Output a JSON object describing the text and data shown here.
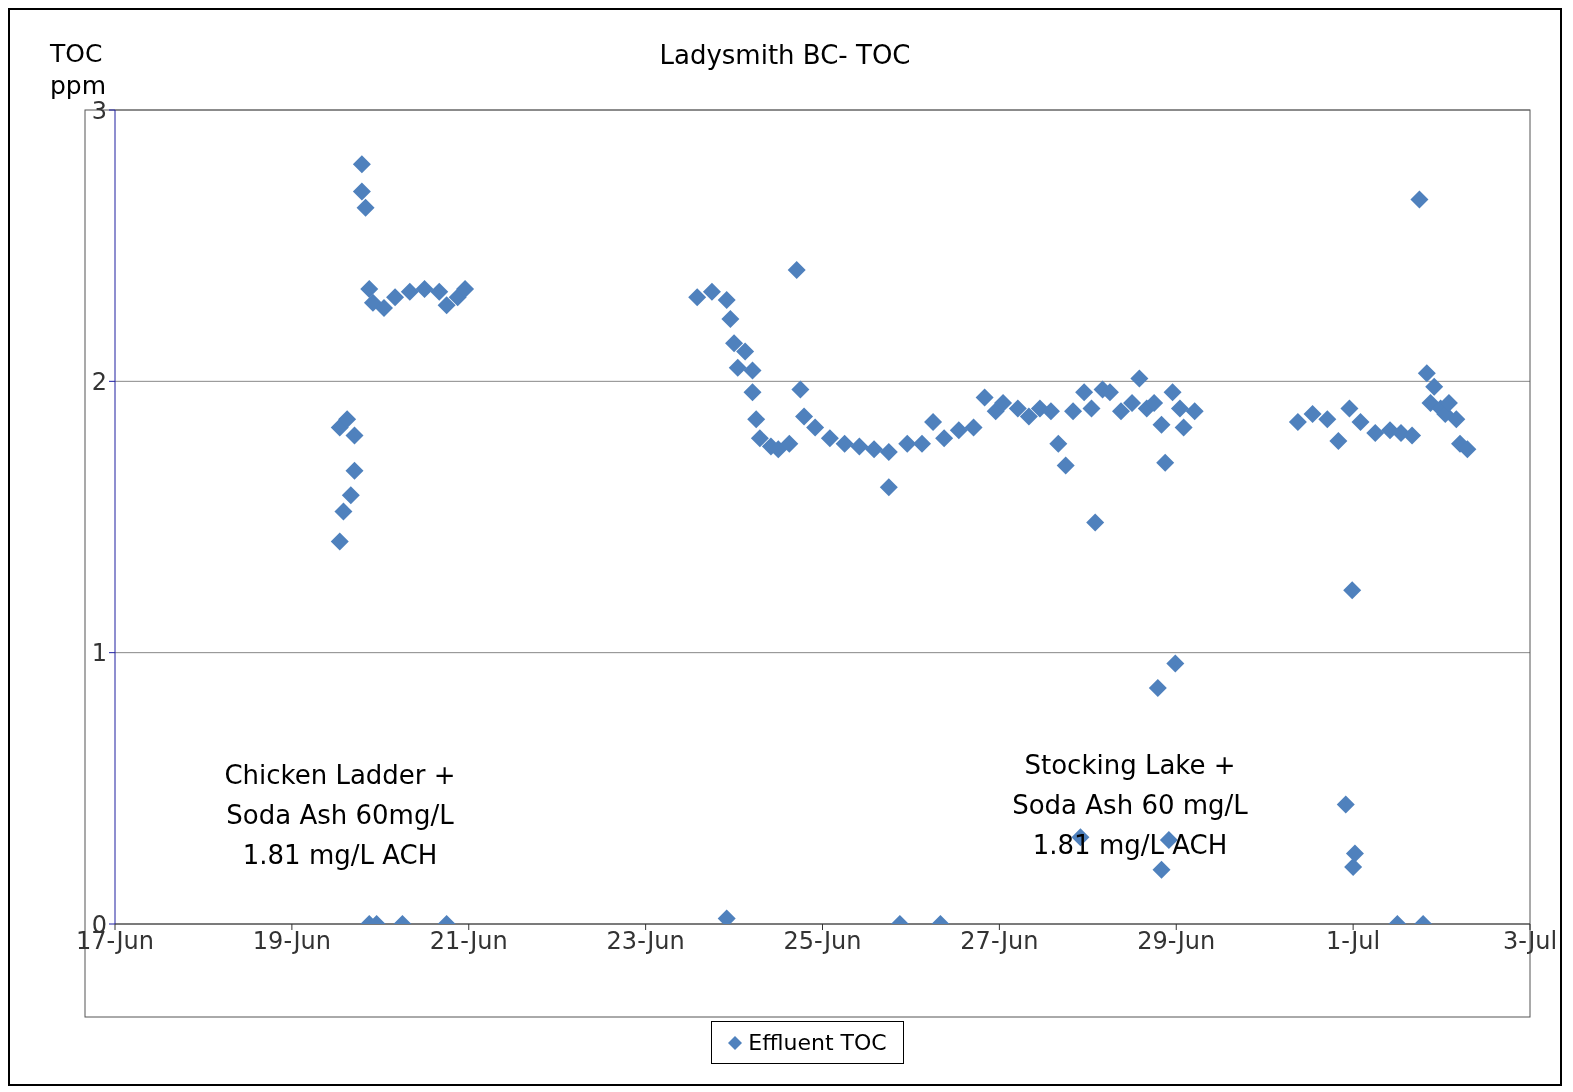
{
  "chart_data": {
    "type": "scatter",
    "title": "Ladysmith BC- TOC",
    "ylabel": "TOC ppm",
    "annotations": [
      "Chicken Ladder +\nSoda Ash 60mg/L\n1.81 mg/L ACH",
      "Stocking Lake +\nSoda Ash 60 mg/L\n1.81 mg/L ACH"
    ],
    "xlim": [
      "--06-17",
      "--07-03"
    ],
    "xticks": [
      {
        "value": "--06-17",
        "label": "17-Jun"
      },
      {
        "value": "--06-19",
        "label": "19-Jun"
      },
      {
        "value": "--06-21",
        "label": "21-Jun"
      },
      {
        "value": "--06-23",
        "label": "23-Jun"
      },
      {
        "value": "--06-25",
        "label": "25-Jun"
      },
      {
        "value": "--06-27",
        "label": "27-Jun"
      },
      {
        "value": "--06-29",
        "label": "29-Jun"
      },
      {
        "value": "--07-01",
        "label": "1-Jul"
      },
      {
        "value": "--07-03",
        "label": "3-Jul"
      }
    ],
    "ylim": [
      0,
      3
    ],
    "yticks": [
      0,
      1,
      2,
      3
    ],
    "grid": "y",
    "legend": "bottom",
    "marker": "diamond",
    "series": [
      {
        "name": "Effluent TOC",
        "color": "#4f81bd",
        "x": [
          "--06-19T13:00",
          "--06-19T14:00",
          "--06-19T16:00",
          "--06-19T17:00",
          "--06-19T13:00",
          "--06-19T15:00",
          "--06-19T17:00",
          "--06-19T19:00",
          "--06-19T19:00",
          "--06-19T20:00",
          "--06-19T21:00",
          "--06-19T22:00",
          "--06-20T01:00",
          "--06-20T04:00",
          "--06-20T08:00",
          "--06-20T12:00",
          "--06-20T16:00",
          "--06-20T18:00",
          "--06-20T21:00",
          "--06-20T23:00",
          "--06-19T21:00",
          "--06-19T23:00",
          "--06-20T06:00",
          "--06-20T18:00",
          "--06-23T22:00",
          "--06-23T14:00",
          "--06-23T18:00",
          "--06-23T22:00",
          "--06-23T23:00",
          "--06-24T00:00",
          "--06-24T01:00",
          "--06-24T03:00",
          "--06-24T05:00",
          "--06-24T05:00",
          "--06-24T06:00",
          "--06-24T07:00",
          "--06-24T10:00",
          "--06-24T12:00",
          "--06-24T15:00",
          "--06-24T17:00",
          "--06-24T18:00",
          "--06-24T19:00",
          "--06-24T22:00",
          "--06-25T02:00",
          "--06-25T06:00",
          "--06-25T10:00",
          "--06-25T14:00",
          "--06-25T18:00",
          "--06-25T18:00",
          "--06-25T21:00",
          "--06-25T23:00",
          "--06-26T03:00",
          "--06-26T06:00",
          "--06-26T08:00",
          "--06-26T09:00",
          "--06-26T13:00",
          "--06-26T17:00",
          "--06-26T20:00",
          "--06-26T23:00",
          "--06-27T01:00",
          "--06-27T05:00",
          "--06-27T08:00",
          "--06-27T11:00",
          "--06-27T14:00",
          "--06-27T16:00",
          "--06-27T18:00",
          "--06-27T20:00",
          "--06-27T22:00",
          "--06-27T23:00",
          "--06-28T01:00",
          "--06-28T02:00",
          "--06-28T04:00",
          "--06-28T06:00",
          "--06-28T09:00",
          "--06-28T12:00",
          "--06-28T14:00",
          "--06-28T16:00",
          "--06-28T18:00",
          "--06-28T19:00",
          "--06-28T20:00",
          "--06-28T20:00",
          "--06-28T21:00",
          "--06-28T22:00",
          "--06-28T23:00",
          "--06-28T23:45",
          "--06-29T01:00",
          "--06-29T02:00",
          "--06-29T05:00",
          "--06-30T09:00",
          "--06-30T13:00",
          "--06-30T17:00",
          "--06-30T20:00",
          "--06-30T22:00",
          "--06-30T23:00",
          "--06-30T23:45",
          "--07-01T00:00",
          "--07-01T00:30",
          "--07-01T02:00",
          "--07-01T06:00",
          "--07-01T10:00",
          "--07-01T12:00",
          "--07-01T13:00",
          "--07-01T16:00",
          "--07-01T18:00",
          "--07-01T19:00",
          "--07-01T20:00",
          "--07-01T21:00",
          "--07-01T22:00",
          "--07-01T23:45",
          "--07-02T01:00",
          "--07-02T02:00",
          "--07-02T04:00",
          "--07-02T05:00",
          "--07-02T07:00"
        ],
        "values": [
          1.41,
          1.52,
          1.58,
          1.67,
          1.83,
          1.86,
          1.8,
          2.8,
          2.7,
          2.64,
          2.34,
          2.29,
          2.27,
          2.31,
          2.33,
          2.34,
          2.33,
          2.28,
          2.31,
          2.34,
          0,
          0,
          0,
          0,
          0.02,
          2.31,
          2.33,
          2.3,
          2.23,
          2.14,
          2.05,
          2.11,
          2.04,
          1.96,
          1.86,
          1.79,
          1.76,
          1.75,
          1.77,
          2.41,
          1.97,
          1.87,
          1.83,
          1.79,
          1.77,
          1.76,
          1.75,
          1.74,
          1.61,
          0,
          1.77,
          1.77,
          1.85,
          0,
          1.79,
          1.82,
          1.83,
          1.94,
          1.89,
          1.92,
          1.9,
          1.87,
          1.9,
          1.89,
          1.77,
          1.69,
          1.89,
          0.32,
          1.96,
          1.9,
          1.48,
          1.97,
          1.96,
          1.89,
          1.92,
          2.01,
          1.9,
          1.92,
          0.87,
          1.84,
          0.2,
          1.7,
          0.31,
          1.96,
          0.96,
          1.9,
          1.83,
          1.89,
          1.85,
          1.88,
          1.86,
          1.78,
          0.44,
          1.9,
          1.23,
          0.21,
          0.26,
          1.85,
          1.81,
          1.82,
          0,
          1.81,
          1.8,
          2.67,
          0,
          2.03,
          1.92,
          1.98,
          1.9,
          1.88,
          1.92,
          1.86,
          1.77,
          1.75
        ]
      }
    ]
  }
}
